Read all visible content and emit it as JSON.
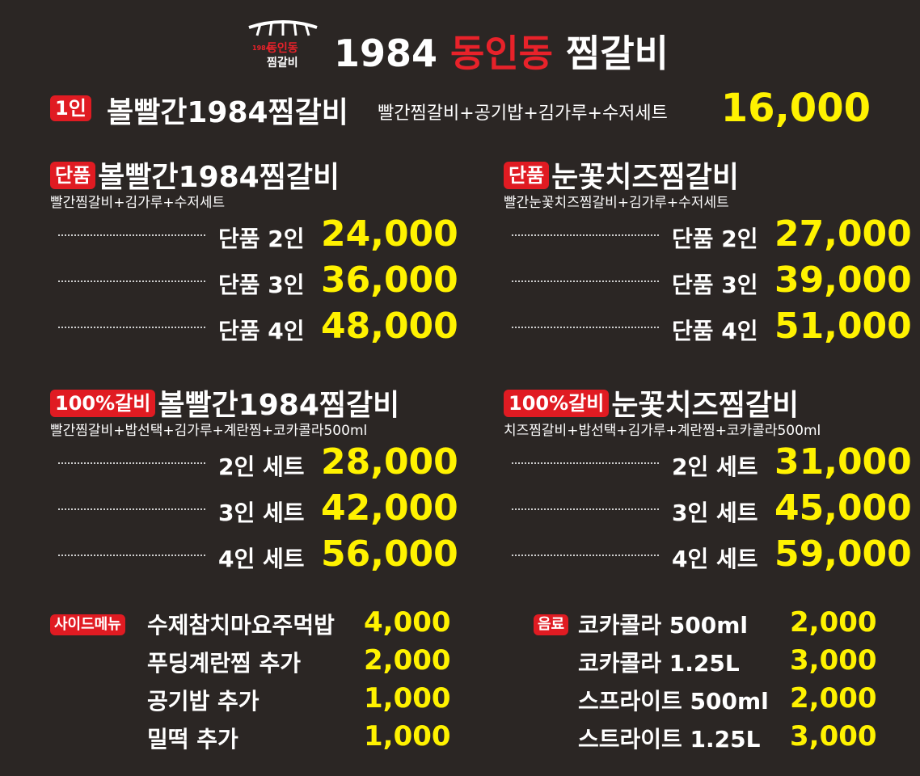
{
  "brand": {
    "logo_year": "1984",
    "logo_top": "동인동",
    "logo_bottom": "찜갈비",
    "title_year": "1984",
    "title_red": "동인동",
    "title_rest": "찜갈비"
  },
  "single": {
    "badge": "1인",
    "name": "볼빨간1984찜갈비",
    "desc": "빨간찜갈비+공기밥+김가루+수저세트",
    "price": "16,000"
  },
  "sections": [
    {
      "badge": "단품",
      "title": "볼빨간1984찜갈비",
      "sub": "빨간찜갈비+김가루+수저세트",
      "rows": [
        {
          "label": "단품 2인",
          "price": "24,000"
        },
        {
          "label": "단품 3인",
          "price": "36,000"
        },
        {
          "label": "단품 4인",
          "price": "48,000"
        }
      ]
    },
    {
      "badge": "단품",
      "title": "눈꽃치즈찜갈비",
      "sub": "빨간눈꽃치즈찜갈비+김가루+수저세트",
      "rows": [
        {
          "label": "단품 2인",
          "price": "27,000"
        },
        {
          "label": "단품 3인",
          "price": "39,000"
        },
        {
          "label": "단품 4인",
          "price": "51,000"
        }
      ]
    },
    {
      "badge": "100%갈비",
      "title": "볼빨간1984찜갈비",
      "sub": "빨간찜갈비+밥선택+김가루+계란찜+코카콜라500ml",
      "rows": [
        {
          "label": "2인 세트",
          "price": "28,000"
        },
        {
          "label": "3인 세트",
          "price": "42,000"
        },
        {
          "label": "4인 세트",
          "price": "56,000"
        }
      ]
    },
    {
      "badge": "100%갈비",
      "title": "눈꽃치즈찜갈비",
      "sub": "치즈찜갈비+밥선택+김가루+계란찜+코카콜라500ml",
      "rows": [
        {
          "label": "2인 세트",
          "price": "31,000"
        },
        {
          "label": "3인 세트",
          "price": "45,000"
        },
        {
          "label": "4인 세트",
          "price": "59,000"
        }
      ]
    }
  ],
  "side_menu": {
    "badge": "사이드메뉴",
    "items": [
      {
        "name": "수제참치마요주먹밥",
        "price": "4,000"
      },
      {
        "name": "푸딩계란찜 추가",
        "price": "2,000"
      },
      {
        "name": "공기밥 추가",
        "price": "1,000"
      },
      {
        "name": "밀떡 추가",
        "price": "1,000"
      }
    ]
  },
  "drinks": {
    "badge": "음료",
    "items": [
      {
        "name": "코카콜라 500ml",
        "price": "2,000"
      },
      {
        "name": "코카콜라 1.25L",
        "price": "3,000"
      },
      {
        "name": "스프라이트 500ml",
        "price": "2,000"
      },
      {
        "name": "스트라이트 1.25L",
        "price": "3,000"
      }
    ]
  },
  "colors": {
    "background": "#2b2624",
    "price": "#fff200",
    "badge": "#e01b22",
    "brand_red": "#e8222a"
  }
}
